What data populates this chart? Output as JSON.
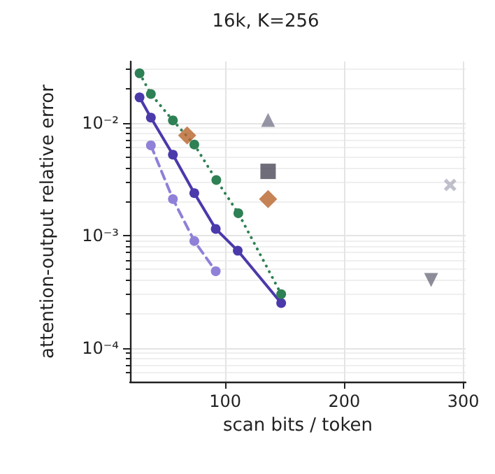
{
  "chart_data": {
    "type": "line",
    "title": "16k, K=256",
    "xlabel": "scan bits / token",
    "ylabel": "attention-output relative error",
    "xlim": [
      20,
      302
    ],
    "xticks": [
      100,
      200,
      300
    ],
    "ylim": [
      5e-05,
      0.035
    ],
    "log": "y",
    "yticks": [
      {
        "value": 0.0001,
        "label": "10⁻⁴"
      },
      {
        "value": 0.001,
        "label": "10⁻³"
      },
      {
        "value": 0.01,
        "label": "10⁻²"
      }
    ],
    "grid": true,
    "series": [
      {
        "type": "line",
        "color": "#4a3aab",
        "line_style": "solid",
        "marker": "circle",
        "x": [
          28,
          37.5,
          56,
          74,
          92,
          110.5,
          147
        ],
        "values": [
          0.0168,
          0.0111,
          0.0052,
          0.00237,
          0.00114,
          0.00073,
          0.00025
        ]
      },
      {
        "type": "line",
        "color": "#9080d8",
        "line_style": "dashed",
        "marker": "circle",
        "x": [
          37.5,
          56,
          74,
          92
        ],
        "values": [
          0.0063,
          0.0021,
          0.00089,
          0.00048
        ]
      },
      {
        "type": "line",
        "color": "#2e8055",
        "line_style": "dotted",
        "marker": "circle",
        "x": [
          28,
          37.5,
          56,
          74,
          92.5,
          111,
          147
        ],
        "values": [
          0.0275,
          0.018,
          0.0105,
          0.0064,
          0.0031,
          0.00157,
          0.0003
        ]
      },
      {
        "type": "scatter",
        "color": "#b8642a",
        "marker": "diamond",
        "x": [
          68,
          136
        ],
        "values": [
          0.0077,
          0.0021
        ]
      },
      {
        "type": "scatter",
        "color": "#7c7a90",
        "marker": "triangle",
        "x": [
          136
        ],
        "values": [
          0.0106
        ]
      },
      {
        "type": "scatter",
        "color": "#4a4858",
        "marker": "square",
        "x": [
          136
        ],
        "values": [
          0.0037
        ]
      },
      {
        "type": "scatter",
        "color": "#b0b0c0",
        "marker": "cross",
        "x": [
          289
        ],
        "values": [
          0.0028
        ]
      },
      {
        "type": "scatter",
        "color": "#707080",
        "marker": "triangle-down",
        "x": [
          273
        ],
        "values": [
          0.0004
        ]
      }
    ]
  }
}
